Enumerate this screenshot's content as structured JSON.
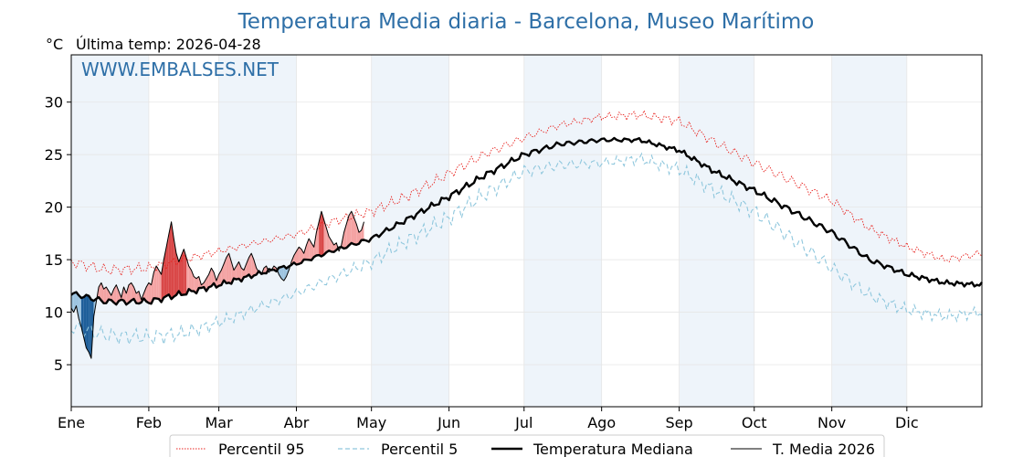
{
  "header": {
    "title": "Temperatura Media diaria - Barcelona, Museo Marítimo",
    "unit": "°C",
    "subtitle": "Última temp: 2026-04-28",
    "watermark": "WWW.EMBALSES.NET"
  },
  "colors": {
    "title": "#2e6fa7",
    "p95": "#e8231f",
    "p5": "#8fc7dd",
    "median": "#000000",
    "current": "#000000",
    "above_fill": "#f4a3a3",
    "above_fill_strong": "#d94848",
    "below_fill": "#9dc4e0",
    "below_fill_strong": "#1f5f9a",
    "month_band": "#eef4fa"
  },
  "chart_data": {
    "type": "line",
    "xlabel": "",
    "ylabel": "°C",
    "x_range": [
      1,
      365
    ],
    "ylim": [
      1,
      34.5
    ],
    "y_ticks": [
      5,
      10,
      15,
      20,
      25,
      30
    ],
    "months": [
      "Ene",
      "Feb",
      "Mar",
      "Abr",
      "May",
      "Jun",
      "Jul",
      "Ago",
      "Sep",
      "Oct",
      "Nov",
      "Dic"
    ],
    "month_start_days": [
      1,
      32,
      60,
      91,
      121,
      152,
      182,
      213,
      244,
      274,
      305,
      335
    ],
    "grid": true,
    "legend_position": "bottom",
    "series": [
      {
        "name": "Percentil 95",
        "style": "dotted",
        "anchors": [
          [
            1,
            14.8
          ],
          [
            15,
            14.0
          ],
          [
            32,
            14.2
          ],
          [
            46,
            15.0
          ],
          [
            60,
            15.8
          ],
          [
            75,
            16.6
          ],
          [
            91,
            17.4
          ],
          [
            105,
            18.6
          ],
          [
            121,
            19.6
          ],
          [
            135,
            21.0
          ],
          [
            152,
            23.2
          ],
          [
            166,
            25.0
          ],
          [
            182,
            26.6
          ],
          [
            196,
            27.8
          ],
          [
            213,
            28.6
          ],
          [
            228,
            28.8
          ],
          [
            244,
            28.2
          ],
          [
            258,
            26.2
          ],
          [
            274,
            24.2
          ],
          [
            288,
            22.6
          ],
          [
            305,
            20.6
          ],
          [
            320,
            18.0
          ],
          [
            335,
            16.2
          ],
          [
            350,
            15.0
          ],
          [
            365,
            15.6
          ]
        ]
      },
      {
        "name": "Percentil 5",
        "style": "dashed",
        "anchors": [
          [
            1,
            8.6
          ],
          [
            15,
            7.8
          ],
          [
            32,
            7.6
          ],
          [
            46,
            8.0
          ],
          [
            60,
            9.0
          ],
          [
            75,
            10.4
          ],
          [
            91,
            11.8
          ],
          [
            105,
            13.2
          ],
          [
            121,
            14.8
          ],
          [
            135,
            16.8
          ],
          [
            152,
            19.0
          ],
          [
            166,
            21.2
          ],
          [
            182,
            23.4
          ],
          [
            196,
            24.0
          ],
          [
            213,
            24.2
          ],
          [
            228,
            24.6
          ],
          [
            244,
            23.6
          ],
          [
            258,
            21.6
          ],
          [
            274,
            19.6
          ],
          [
            288,
            17.2
          ],
          [
            305,
            14.2
          ],
          [
            320,
            11.6
          ],
          [
            335,
            10.2
          ],
          [
            350,
            9.6
          ],
          [
            365,
            10.0
          ]
        ]
      },
      {
        "name": "Temperatura Mediana",
        "style": "solid-thick",
        "anchors": [
          [
            1,
            11.8
          ],
          [
            15,
            11.0
          ],
          [
            32,
            11.0
          ],
          [
            46,
            11.8
          ],
          [
            60,
            12.6
          ],
          [
            75,
            13.6
          ],
          [
            91,
            14.6
          ],
          [
            105,
            15.8
          ],
          [
            121,
            17.0
          ],
          [
            135,
            18.8
          ],
          [
            152,
            21.0
          ],
          [
            166,
            23.0
          ],
          [
            182,
            25.0
          ],
          [
            196,
            26.0
          ],
          [
            213,
            26.4
          ],
          [
            228,
            26.4
          ],
          [
            244,
            25.4
          ],
          [
            258,
            23.4
          ],
          [
            274,
            21.6
          ],
          [
            288,
            19.8
          ],
          [
            305,
            17.6
          ],
          [
            320,
            15.0
          ],
          [
            335,
            13.6
          ],
          [
            350,
            12.8
          ],
          [
            365,
            12.6
          ]
        ]
      },
      {
        "name": "T. Media 2026",
        "style": "solid-thin",
        "points": [
          [
            1,
            10.4
          ],
          [
            2,
            10.0
          ],
          [
            3,
            10.6
          ],
          [
            4,
            9.4
          ],
          [
            5,
            8.6
          ],
          [
            6,
            7.6
          ],
          [
            7,
            6.6
          ],
          [
            8,
            6.2
          ],
          [
            9,
            5.6
          ],
          [
            10,
            9.6
          ],
          [
            11,
            11.0
          ],
          [
            12,
            12.4
          ],
          [
            13,
            12.8
          ],
          [
            14,
            12.2
          ],
          [
            15,
            12.4
          ],
          [
            16,
            12.0
          ],
          [
            17,
            11.6
          ],
          [
            18,
            12.2
          ],
          [
            19,
            12.6
          ],
          [
            20,
            12.0
          ],
          [
            21,
            11.4
          ],
          [
            22,
            12.4
          ],
          [
            23,
            11.8
          ],
          [
            24,
            12.6
          ],
          [
            25,
            12.8
          ],
          [
            26,
            12.4
          ],
          [
            27,
            11.8
          ],
          [
            28,
            12.0
          ],
          [
            29,
            11.2
          ],
          [
            30,
            11.8
          ],
          [
            31,
            12.4
          ],
          [
            32,
            12.8
          ],
          [
            33,
            12.6
          ],
          [
            34,
            13.8
          ],
          [
            35,
            14.4
          ],
          [
            36,
            14.0
          ],
          [
            37,
            13.6
          ],
          [
            38,
            15.0
          ],
          [
            39,
            16.2
          ],
          [
            40,
            17.4
          ],
          [
            41,
            18.6
          ],
          [
            42,
            17.0
          ],
          [
            43,
            15.6
          ],
          [
            44,
            14.8
          ],
          [
            45,
            15.4
          ],
          [
            46,
            16.0
          ],
          [
            47,
            15.2
          ],
          [
            48,
            14.4
          ],
          [
            49,
            14.0
          ],
          [
            50,
            13.4
          ],
          [
            51,
            13.2
          ],
          [
            52,
            13.4
          ],
          [
            53,
            12.6
          ],
          [
            54,
            12.8
          ],
          [
            55,
            13.2
          ],
          [
            56,
            13.6
          ],
          [
            57,
            14.2
          ],
          [
            58,
            13.8
          ],
          [
            59,
            13.0
          ],
          [
            60,
            13.6
          ],
          [
            61,
            14.0
          ],
          [
            62,
            14.6
          ],
          [
            63,
            15.2
          ],
          [
            64,
            15.6
          ],
          [
            65,
            14.8
          ],
          [
            66,
            14.0
          ],
          [
            67,
            14.4
          ],
          [
            68,
            14.8
          ],
          [
            69,
            14.2
          ],
          [
            70,
            14.0
          ],
          [
            71,
            14.6
          ],
          [
            72,
            15.2
          ],
          [
            73,
            15.6
          ],
          [
            74,
            15.0
          ],
          [
            75,
            14.2
          ],
          [
            76,
            13.8
          ],
          [
            77,
            13.6
          ],
          [
            78,
            14.2
          ],
          [
            79,
            14.4
          ],
          [
            80,
            13.8
          ],
          [
            81,
            14.0
          ],
          [
            82,
            14.4
          ],
          [
            83,
            14.2
          ],
          [
            84,
            13.6
          ],
          [
            85,
            13.2
          ],
          [
            86,
            13.0
          ],
          [
            87,
            13.4
          ],
          [
            88,
            14.0
          ],
          [
            89,
            14.8
          ],
          [
            90,
            15.4
          ],
          [
            91,
            15.8
          ],
          [
            92,
            16.2
          ],
          [
            93,
            16.0
          ],
          [
            94,
            15.6
          ],
          [
            95,
            16.4
          ],
          [
            96,
            17.0
          ],
          [
            97,
            16.6
          ],
          [
            98,
            16.2
          ],
          [
            99,
            17.6
          ],
          [
            100,
            18.6
          ],
          [
            101,
            19.6
          ],
          [
            102,
            18.8
          ],
          [
            103,
            18.0
          ],
          [
            104,
            17.2
          ],
          [
            105,
            16.8
          ],
          [
            106,
            16.4
          ],
          [
            107,
            16.6
          ],
          [
            108,
            15.8
          ],
          [
            109,
            16.4
          ],
          [
            110,
            17.6
          ],
          [
            111,
            18.4
          ],
          [
            112,
            19.2
          ],
          [
            113,
            19.6
          ],
          [
            114,
            19.0
          ],
          [
            115,
            18.4
          ],
          [
            116,
            17.6
          ],
          [
            117,
            17.8
          ],
          [
            118,
            18.6
          ]
        ]
      }
    ]
  },
  "legend": {
    "items": [
      {
        "label": "Percentil 95",
        "key": "p95"
      },
      {
        "label": "Percentil 5",
        "key": "p5"
      },
      {
        "label": "Temperatura Mediana",
        "key": "median"
      },
      {
        "label": "T. Media 2026",
        "key": "current"
      }
    ]
  }
}
